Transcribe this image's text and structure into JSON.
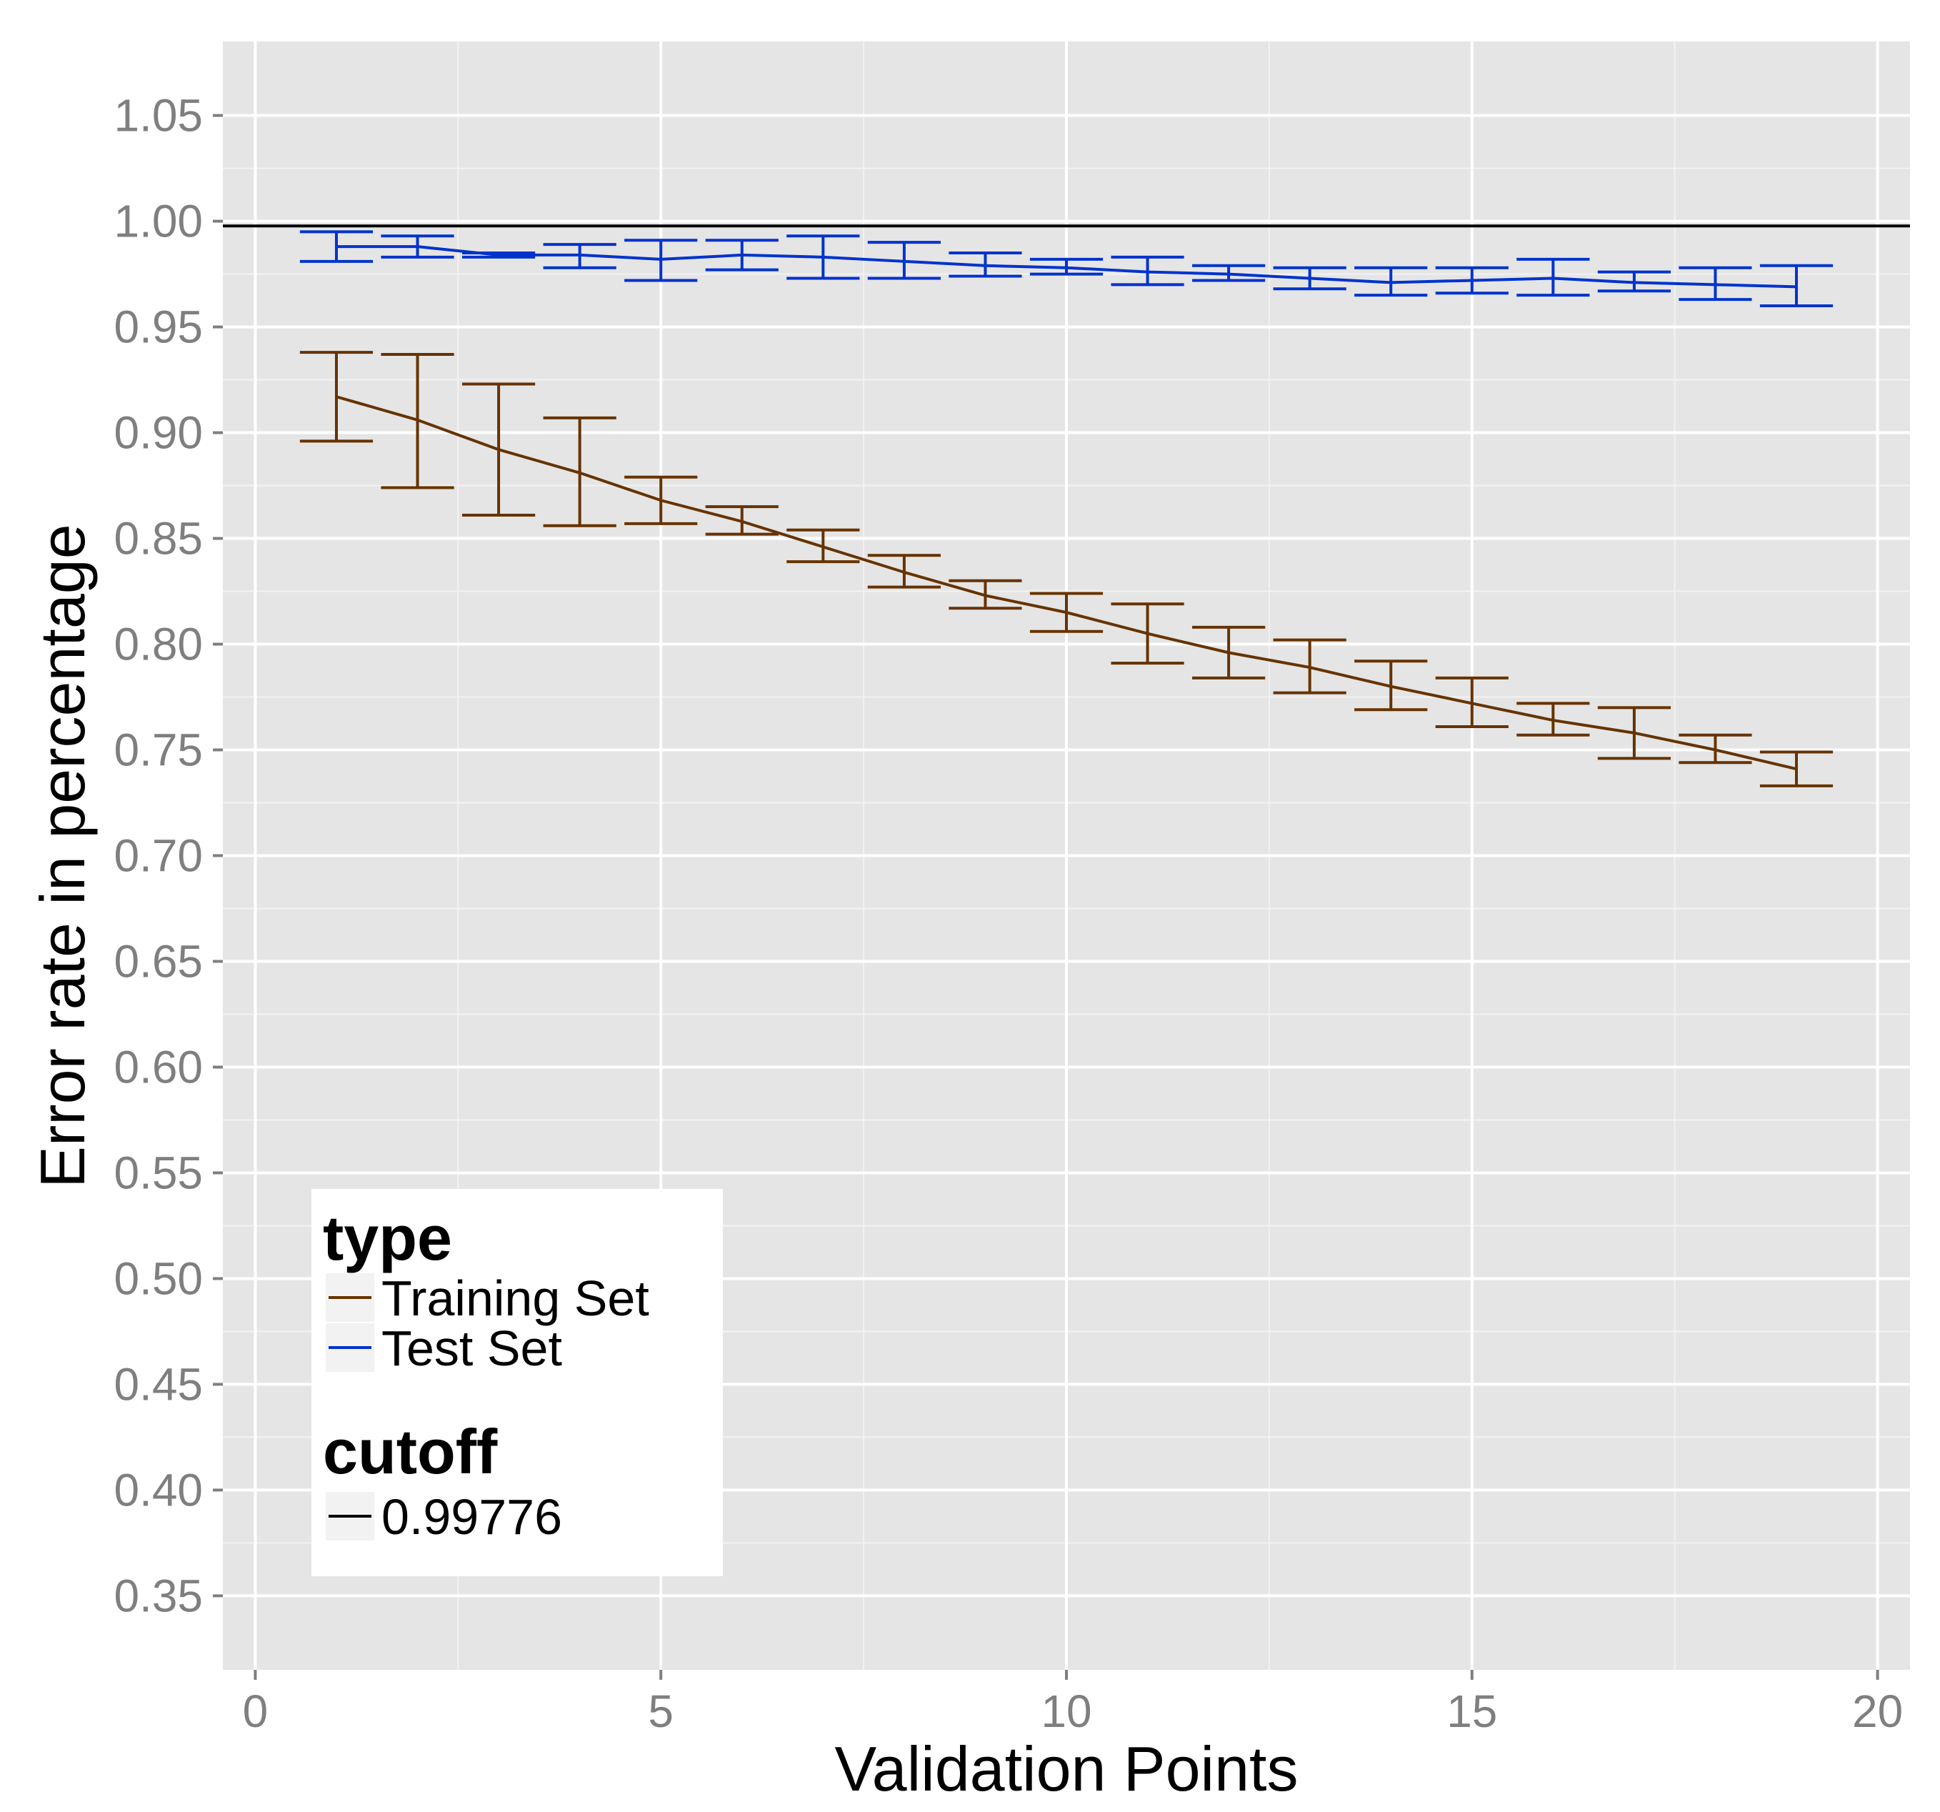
{
  "chart_data": {
    "type": "line",
    "title": "",
    "xlabel": "Validation Points",
    "ylabel": "Error rate in percentage",
    "xlim": [
      -0.4,
      20.4
    ],
    "ylim": [
      0.315,
      1.085
    ],
    "x_ticks": [
      0,
      5,
      10,
      15,
      20
    ],
    "x_tick_labels": [
      "0",
      "5",
      "10",
      "15",
      "20"
    ],
    "y_ticks": [
      0.35,
      0.4,
      0.45,
      0.5,
      0.55,
      0.6,
      0.65,
      0.7,
      0.75,
      0.8,
      0.85,
      0.9,
      0.95,
      1.0,
      1.05
    ],
    "y_tick_labels": [
      "0.35",
      "0.40",
      "0.45",
      "0.50",
      "0.55",
      "0.60",
      "0.65",
      "0.70",
      "0.75",
      "0.80",
      "0.85",
      "0.90",
      "0.95",
      "1.00",
      "1.05"
    ],
    "grid": true,
    "legend_position": "bottom-left",
    "x": [
      1,
      2,
      3,
      4,
      5,
      6,
      7,
      8,
      9,
      10,
      11,
      12,
      13,
      14,
      15,
      16,
      17,
      18,
      19
    ],
    "series": [
      {
        "name": "Training Set",
        "color": "#663300",
        "values": [
          0.917,
          0.906,
          0.892,
          0.881,
          0.868,
          0.858,
          0.846,
          0.834,
          0.823,
          0.815,
          0.805,
          0.796,
          0.789,
          0.78,
          0.772,
          0.764,
          0.758,
          0.75,
          0.741
        ],
        "lower": [
          0.896,
          0.874,
          0.861,
          0.856,
          0.857,
          0.852,
          0.839,
          0.827,
          0.817,
          0.806,
          0.791,
          0.784,
          0.777,
          0.769,
          0.761,
          0.757,
          0.746,
          0.744,
          0.733
        ],
        "upper": [
          0.938,
          0.937,
          0.923,
          0.907,
          0.879,
          0.865,
          0.854,
          0.842,
          0.83,
          0.824,
          0.819,
          0.808,
          0.802,
          0.792,
          0.784,
          0.772,
          0.77,
          0.757,
          0.749
        ]
      },
      {
        "name": "Test Set",
        "color": "#0033cc",
        "values": [
          0.988,
          0.988,
          0.984,
          0.984,
          0.982,
          0.984,
          0.983,
          0.981,
          0.979,
          0.978,
          0.976,
          0.975,
          0.973,
          0.971,
          0.972,
          0.973,
          0.971,
          0.97,
          0.969
        ],
        "lower": [
          0.981,
          0.983,
          0.983,
          0.978,
          0.972,
          0.977,
          0.973,
          0.973,
          0.974,
          0.975,
          0.97,
          0.972,
          0.968,
          0.965,
          0.966,
          0.965,
          0.967,
          0.963,
          0.96
        ],
        "upper": [
          0.995,
          0.993,
          0.985,
          0.989,
          0.991,
          0.991,
          0.993,
          0.99,
          0.985,
          0.982,
          0.983,
          0.979,
          0.978,
          0.978,
          0.978,
          0.982,
          0.976,
          0.978,
          0.979
        ]
      }
    ],
    "cutoff": {
      "name": "0.99776",
      "value": 0.99776,
      "color": "#000000"
    },
    "legend": {
      "type_title": "type",
      "cutoff_title": "cutoff"
    },
    "colors": {
      "panel_background": "#e5e5e5",
      "grid_major": "#ffffff",
      "grid_minor": "#f2f2f2",
      "tick_text": "#7f7f7f"
    }
  }
}
